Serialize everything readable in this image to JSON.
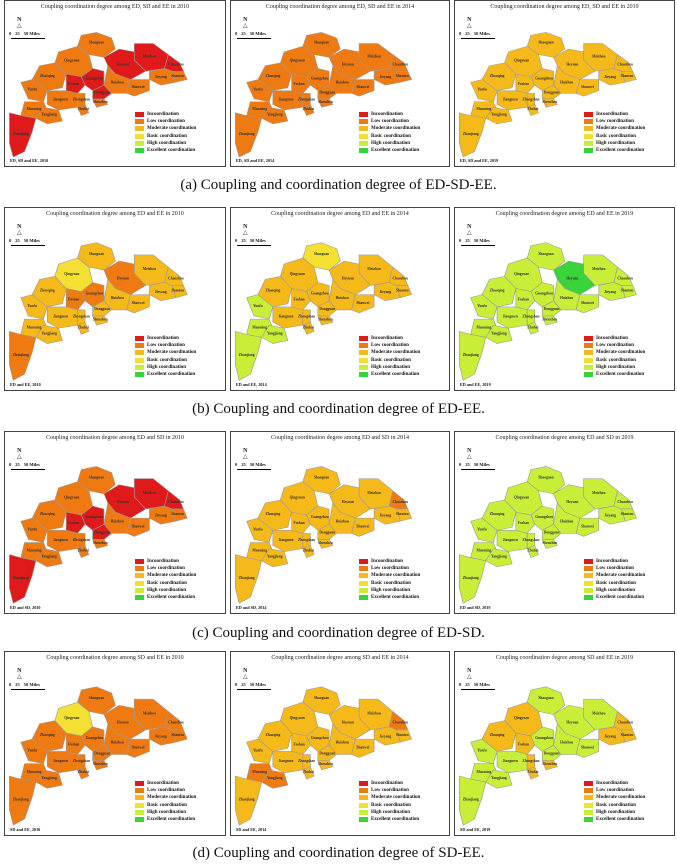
{
  "legend": {
    "items": [
      {
        "label": "Incoordination",
        "color": "#e01a1a"
      },
      {
        "label": "Low coordination",
        "color": "#f07a12"
      },
      {
        "label": "Moderate coordination",
        "color": "#f6b91a"
      },
      {
        "label": "Basic coordination",
        "color": "#f3e033"
      },
      {
        "label": "High coordination",
        "color": "#c9ee38"
      },
      {
        "label": "Excellent coordination",
        "color": "#39d33a"
      }
    ]
  },
  "scale": {
    "ticks": [
      "0",
      "25",
      "50 Miles"
    ],
    "north": "N"
  },
  "cities": [
    "Shaoguan",
    "Qingyuan",
    "Meizhou",
    "Heyuan",
    "Chaozhou",
    "Shantou",
    "Jieyang",
    "Zhaoqing",
    "Guangzhou",
    "Huizhou",
    "Shanwei",
    "Foshan",
    "Dongguan",
    "Yunfu",
    "Jiangmen",
    "Zhongshan",
    "Shenzhen",
    "Zhuhai",
    "Maoming",
    "Yangjiang",
    "Zhanjiang"
  ],
  "rows": [
    {
      "caption": "(a) Coupling and coordination degree of ED-SD-EE.",
      "panels": [
        {
          "title": "Coupling coordination degree among ED, SD and EE in 2010",
          "footer": "ED, SD and EE, 2010",
          "cities": [
            "lo",
            "lo",
            "inc",
            "inc",
            "inc",
            "lo",
            "lo",
            "lo",
            "inc",
            "lo",
            "lo",
            "inc",
            "inc",
            "lo",
            "lo",
            "lo",
            "lo",
            "lo",
            "lo",
            "lo",
            "inc"
          ]
        },
        {
          "title": "Coupling coordination degree among ED, SD and EE in 2014",
          "footer": "ED, SD and EE, 2014",
          "cities": [
            "lo",
            "lo",
            "lo",
            "lo",
            "lo",
            "lo",
            "lo",
            "lo",
            "lo",
            "lo",
            "lo",
            "lo",
            "lo",
            "lo",
            "lo",
            "lo",
            "lo",
            "lo",
            "lo",
            "lo",
            "lo"
          ]
        },
        {
          "title": "Coupling coordination degree among ED, SD and EE in 2019",
          "footer": "ED, SD and EE, 2019",
          "cities": [
            "mod",
            "mod",
            "mod",
            "mod",
            "mod",
            "mod",
            "mod",
            "mod",
            "mod",
            "mod",
            "mod",
            "mod",
            "mod",
            "mod",
            "mod",
            "mod",
            "mod",
            "mod",
            "mod",
            "mod",
            "mod"
          ]
        }
      ]
    },
    {
      "caption": "(b) Coupling and coordination degree of ED-EE.",
      "panels": [
        {
          "title": "Coupling coordination degree among ED and EE in 2010",
          "footer": "ED and EE, 2010",
          "cities": [
            "mod",
            "bas",
            "mod",
            "lo",
            "mod",
            "mod",
            "mod",
            "mod",
            "lo",
            "mod",
            "mod",
            "lo",
            "mod",
            "mod",
            "mod",
            "mod",
            "mod",
            "mod",
            "mod",
            "mod",
            "lo"
          ]
        },
        {
          "title": "Coupling coordination degree among ED and EE in 2014",
          "footer": "ED and EE, 2014",
          "cities": [
            "bas",
            "mod",
            "mod",
            "mod",
            "mod",
            "mod",
            "mod",
            "mod",
            "mod",
            "mod",
            "mod",
            "mod",
            "mod",
            "high",
            "mod",
            "mod",
            "mod",
            "mod",
            "high",
            "high",
            "high"
          ]
        },
        {
          "title": "Coupling coordination degree among ED and EE in 2019",
          "footer": "ED and EE, 2019",
          "cities": [
            "high",
            "high",
            "high",
            "exc",
            "high",
            "high",
            "high",
            "high",
            "high",
            "high",
            "high",
            "high",
            "high",
            "high",
            "high",
            "high",
            "high",
            "high",
            "high",
            "high",
            "high"
          ]
        }
      ]
    },
    {
      "caption": "(c) Coupling and coordination degree of ED-SD.",
      "panels": [
        {
          "title": "Coupling coordination degree among ED and SD in 2010",
          "footer": "ED and SD, 2010",
          "cities": [
            "lo",
            "lo",
            "inc",
            "inc",
            "inc",
            "lo",
            "lo",
            "lo",
            "inc",
            "lo",
            "lo",
            "inc",
            "inc",
            "lo",
            "lo",
            "lo",
            "lo",
            "lo",
            "lo",
            "lo",
            "inc"
          ]
        },
        {
          "title": "Coupling coordination degree among ED and SD in 2014",
          "footer": "ED and SD, 2014",
          "cities": [
            "mod",
            "mod",
            "mod",
            "mod",
            "lo",
            "mod",
            "mod",
            "mod",
            "mod",
            "mod",
            "mod",
            "mod",
            "mod",
            "mod",
            "mod",
            "mod",
            "mod",
            "mod",
            "mod",
            "mod",
            "mod"
          ]
        },
        {
          "title": "Coupling coordination degree among ED and SD in 2019",
          "footer": "ED and SD, 2019",
          "cities": [
            "high",
            "high",
            "high",
            "high",
            "high",
            "high",
            "high",
            "high",
            "high",
            "high",
            "high",
            "high",
            "high",
            "high",
            "high",
            "high",
            "high",
            "high",
            "high",
            "high",
            "high"
          ]
        }
      ]
    },
    {
      "caption": "(d) Coupling and coordination degree of SD-EE.",
      "panels": [
        {
          "title": "Coupling coordination degree among SD and EE in 2010",
          "footer": "SD and EE, 2010",
          "cities": [
            "lo",
            "bas",
            "lo",
            "lo",
            "lo",
            "lo",
            "lo",
            "lo",
            "lo",
            "lo",
            "lo",
            "lo",
            "lo",
            "lo",
            "lo",
            "lo",
            "lo",
            "lo",
            "lo",
            "lo",
            "lo"
          ]
        },
        {
          "title": "Coupling coordination degree among SD and EE in 2014",
          "footer": "SD and EE, 2014",
          "cities": [
            "mod",
            "mod",
            "mod",
            "mod",
            "lo",
            "mod",
            "mod",
            "mod",
            "mod",
            "mod",
            "mod",
            "mod",
            "mod",
            "mod",
            "mod",
            "mod",
            "mod",
            "mod",
            "lo",
            "lo",
            "mod"
          ]
        },
        {
          "title": "Coupling coordination degree among SD and EE in 2019",
          "footer": "SD and EE, 2019",
          "cities": [
            "high",
            "mod",
            "high",
            "high",
            "mod",
            "mod",
            "mod",
            "mod",
            "high",
            "high",
            "high",
            "mod",
            "high",
            "high",
            "high",
            "mod",
            "mod",
            "mod",
            "high",
            "high",
            "high"
          ]
        }
      ]
    }
  ]
}
